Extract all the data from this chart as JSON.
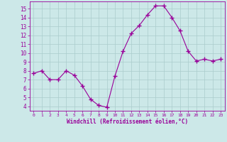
{
  "x": [
    0,
    1,
    2,
    3,
    4,
    5,
    6,
    7,
    8,
    9,
    10,
    11,
    12,
    13,
    14,
    15,
    16,
    17,
    18,
    19,
    20,
    21,
    22,
    23
  ],
  "y": [
    7.7,
    8.0,
    7.0,
    7.0,
    8.0,
    7.5,
    6.3,
    4.8,
    4.1,
    3.9,
    7.4,
    10.2,
    12.2,
    13.1,
    14.3,
    15.3,
    15.3,
    14.0,
    12.5,
    10.2,
    9.1,
    9.3,
    9.1,
    9.3
  ],
  "line_color": "#990099",
  "marker": "+",
  "marker_size": 4,
  "bg_color": "#cce8e8",
  "grid_color": "#aacccc",
  "xlabel": "Windchill (Refroidissement éolien,°C)",
  "xlabel_color": "#990099",
  "tick_color": "#990099",
  "ylim": [
    3.5,
    15.8
  ],
  "xlim": [
    -0.5,
    23.5
  ],
  "yticks": [
    4,
    5,
    6,
    7,
    8,
    9,
    10,
    11,
    12,
    13,
    14,
    15
  ],
  "xticks": [
    0,
    1,
    2,
    3,
    4,
    5,
    6,
    7,
    8,
    9,
    10,
    11,
    12,
    13,
    14,
    15,
    16,
    17,
    18,
    19,
    20,
    21,
    22,
    23
  ]
}
